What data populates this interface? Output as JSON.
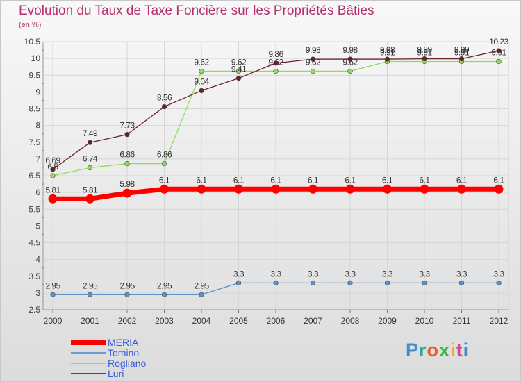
{
  "title": "Evolution du Taux de Taxe Foncière sur les Propriétés Bâties",
  "unit": "(en %)",
  "logo": [
    "P",
    "r",
    "o",
    "x",
    "i",
    "t",
    "i"
  ],
  "logo_colors": [
    "#3a8fd0",
    "#2aa8a0",
    "#e85b2a",
    "#3fb54a",
    "#e8b02a",
    "#d04a8a",
    "#3a8fd0"
  ],
  "chart_data": {
    "type": "line",
    "x": [
      "2000",
      "2001",
      "2002",
      "2003",
      "2004",
      "2005",
      "2006",
      "2007",
      "2008",
      "2009",
      "2010",
      "2011",
      "2012"
    ],
    "ylim": [
      2.5,
      10.5
    ],
    "yticks": [
      "2.5",
      "3",
      "3.5",
      "4",
      "4.5",
      "5",
      "5.5",
      "6",
      "6.5",
      "7",
      "7.5",
      "8",
      "8.5",
      "9",
      "9.5",
      "10",
      "10.5"
    ],
    "grid": true,
    "legend_position": "bottom-left",
    "series": [
      {
        "name": "MERIA",
        "color": "#ff0000",
        "values": [
          5.81,
          5.81,
          5.98,
          6.1,
          6.1,
          6.1,
          6.1,
          6.1,
          6.1,
          6.1,
          6.1,
          6.1,
          6.1
        ],
        "labels": [
          "5.81",
          "5.81",
          "5.98",
          "6.1",
          "6.1",
          "6.1",
          "6.1",
          "6.1",
          "6.1",
          "6.1",
          "6.1",
          "6.1",
          "6.1"
        ]
      },
      {
        "name": "Tomino",
        "color": "#5b93c7",
        "values": [
          2.95,
          2.95,
          2.95,
          2.95,
          2.95,
          3.3,
          3.3,
          3.3,
          3.3,
          3.3,
          3.3,
          3.3,
          3.3
        ],
        "labels": [
          "2.95",
          "2.95",
          "2.95",
          "2.95",
          "2.95",
          "3.3",
          "3.3",
          "3.3",
          "3.3",
          "3.3",
          "3.3",
          "3.3",
          "3.3"
        ]
      },
      {
        "name": "Rogliano",
        "color": "#8fdc5a",
        "values": [
          6.5,
          6.74,
          6.86,
          6.86,
          9.62,
          9.62,
          9.62,
          9.62,
          9.62,
          9.91,
          9.91,
          9.91,
          9.91
        ],
        "labels": [
          "6.5",
          "6.74",
          "6.86",
          "6.86",
          "9.62",
          "9.62",
          "9.62",
          "9.62",
          "9.62",
          "9.91",
          "9.91",
          "9.91",
          "9.91"
        ]
      },
      {
        "name": "Luri",
        "color": "#6b1f2a",
        "values": [
          6.69,
          7.49,
          7.73,
          8.56,
          9.04,
          9.41,
          9.86,
          9.98,
          9.98,
          9.98,
          9.99,
          9.99,
          10.23
        ],
        "labels": [
          "6.69",
          "7.49",
          "7.73",
          "8.56",
          "9.04",
          "9.41",
          "9.86",
          "9.98",
          "9.98",
          "9.98",
          "9.99",
          "9.99",
          "10.23"
        ]
      }
    ]
  }
}
